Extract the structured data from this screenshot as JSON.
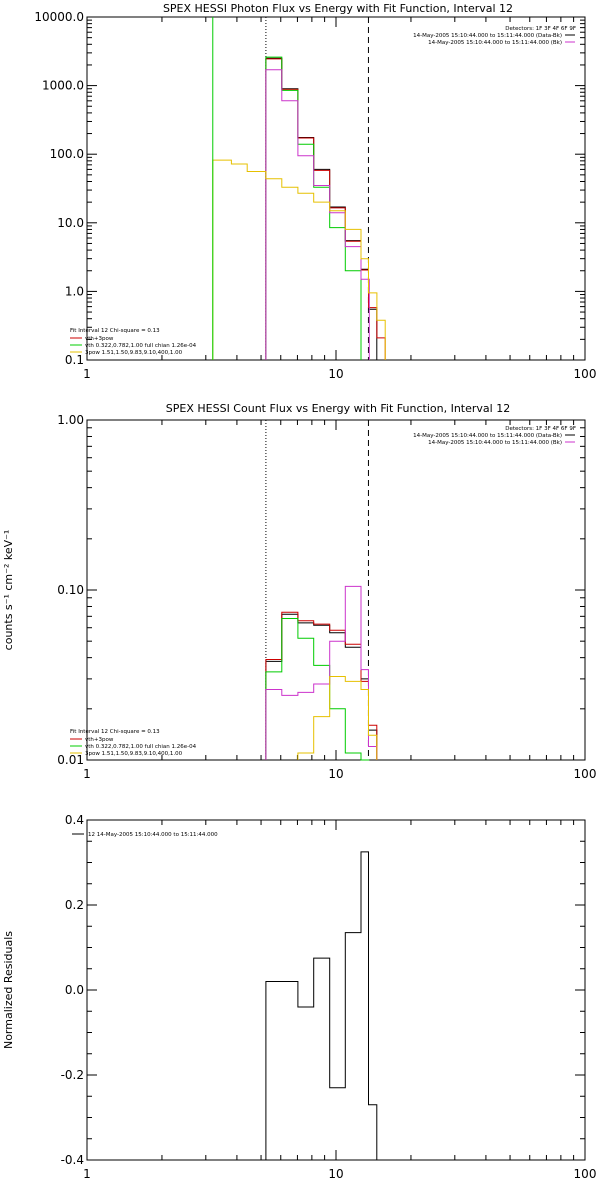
{
  "chart_data": [
    {
      "type": "line",
      "title": "SPEX HESSI Photon Flux vs Energy with Fit Function, Interval 12",
      "ylabel": "",
      "xlabel": "",
      "scale": "log-log",
      "xlim": [
        1,
        100
      ],
      "ylim": [
        0.1,
        10000
      ],
      "x_ticks": [
        "1",
        "10",
        "100"
      ],
      "y_ticks": [
        "0.1",
        "1.0",
        "10.0",
        "100.0",
        "1000.0",
        "10000.0"
      ],
      "legend_top_right": {
        "header": "Detectors: 1F 3F 4F 6F 9F",
        "lines": [
          {
            "text": "14-May-2005 15:10:44.000 to 15:11:44.000 (Data-Bk)",
            "color": "#000000"
          },
          {
            "text": "14-May-2005 15:10:44.000 to 15:11:44.000 (Bk)",
            "color": "#cc33cc"
          }
        ]
      },
      "legend_bottom_left": {
        "header": "Fit Interval 12    Chi-square = 0.13",
        "lines": [
          {
            "text": "vth+3pow",
            "color": "#cc0000"
          },
          {
            "text": "vth 0.322,0.782,1.00  full chian 1.26e-04",
            "color": "#00cc00"
          },
          {
            "text": "3pow 1.51,1.50,9.83,9.10,400,1.00",
            "color": "#e6c000"
          }
        ]
      },
      "vlines": [
        {
          "x": 5.23,
          "style": "dotted"
        },
        {
          "x": 13.5,
          "style": "dashed"
        }
      ],
      "series": [
        {
          "color": "#000000",
          "x": [
            5.23,
            6.06,
            7.03,
            8.14,
            9.43,
            10.9,
            12.6,
            13.5
          ],
          "y": [
            2500,
            900,
            175,
            60,
            17,
            5.5,
            2.1,
            0.55
          ]
        },
        {
          "color": "#cc0000",
          "x": [
            5.23,
            6.06,
            7.03,
            8.14,
            9.43,
            10.9,
            12.6,
            13.5,
            14.6
          ],
          "y": [
            2450,
            880,
            172,
            58,
            16.5,
            5.4,
            2.05,
            0.58,
            0.21
          ]
        },
        {
          "color": "#00cc00",
          "x_start": 5.23,
          "x": [
            6.06,
            7.03,
            8.14,
            9.43,
            10.9,
            12.6
          ],
          "y": [
            2600,
            850,
            140,
            33,
            8.5,
            2.0
          ],
          "drop_at": [
            5.23,
            12.6
          ]
        },
        {
          "color": "#cc33cc",
          "x": [
            5.23,
            6.06,
            7.03,
            8.14,
            9.43,
            10.9,
            12.6
          ],
          "y": [
            1700,
            600,
            95,
            35,
            14,
            4.5,
            1.5
          ]
        },
        {
          "color": "#e6c000",
          "x": [
            3.2,
            3.8,
            4.4,
            5.23,
            6.06,
            7.03,
            8.14,
            9.43,
            10.9,
            12.6,
            13.5,
            14.6
          ],
          "y": [
            82,
            72,
            56,
            44,
            33,
            27,
            20,
            15,
            8,
            3,
            0.95,
            0.38
          ]
        }
      ]
    },
    {
      "type": "line",
      "title": "SPEX HESSI Count Flux vs Energy with Fit Function, Interval 12",
      "ylabel": "counts s⁻¹ cm⁻² keV⁻¹",
      "xlabel": "",
      "scale": "log-log",
      "xlim": [
        1,
        100
      ],
      "ylim": [
        0.01,
        1.0
      ],
      "x_ticks": [
        "1",
        "10",
        "100"
      ],
      "y_ticks": [
        "0.01",
        "0.10",
        "1.00"
      ],
      "legend_top_right": {
        "header": "Detectors: 1F 3F 4F 6F 9F",
        "lines": [
          {
            "text": "14-May-2005 15:10:44.000 to 15:11:44.000 (Data-Bk)",
            "color": "#000000"
          },
          {
            "text": "14-May-2005 15:10:44.000 to 15:11:44.000 (Bk)",
            "color": "#cc33cc"
          }
        ]
      },
      "legend_bottom_left": {
        "header": "Fit Interval 12    Chi-square = 0.13",
        "lines": [
          {
            "text": "vth+3pow",
            "color": "#cc0000"
          },
          {
            "text": "vth 0.322,0.782,1.00  full chian 1.26e-04",
            "color": "#00cc00"
          },
          {
            "text": "3pow 1.51,1.50,9.83,9.10,400,1.00",
            "color": "#e6c000"
          }
        ]
      },
      "vlines": [
        {
          "x": 5.23,
          "style": "dotted"
        },
        {
          "x": 13.5,
          "style": "dashed"
        }
      ],
      "series": [
        {
          "color": "#000000",
          "x": [
            5.23,
            6.06,
            7.03,
            8.14,
            9.43,
            10.9,
            12.6,
            13.5
          ],
          "y": [
            0.038,
            0.072,
            0.064,
            0.062,
            0.056,
            0.046,
            0.03,
            0.015
          ]
        },
        {
          "color": "#cc0000",
          "x": [
            5.23,
            6.06,
            7.03,
            8.14,
            9.43,
            10.9,
            12.6,
            13.5
          ],
          "y": [
            0.039,
            0.074,
            0.066,
            0.063,
            0.058,
            0.048,
            0.029,
            0.016
          ]
        },
        {
          "color": "#00cc00",
          "x": [
            5.23,
            6.06,
            7.03,
            8.14,
            9.43,
            10.9,
            12.6
          ],
          "y": [
            0.033,
            0.068,
            0.052,
            0.036,
            0.02,
            0.011,
            0.01
          ]
        },
        {
          "color": "#cc33cc",
          "x": [
            5.23,
            6.06,
            7.03,
            8.14,
            9.43,
            10.9,
            12.6,
            13.5
          ],
          "y": [
            0.026,
            0.024,
            0.025,
            0.028,
            0.05,
            0.105,
            0.034,
            0.012
          ]
        },
        {
          "color": "#e6c000",
          "x": [
            7.03,
            8.14,
            9.43,
            10.9,
            12.6,
            13.5
          ],
          "y": [
            0.011,
            0.018,
            0.031,
            0.029,
            0.026,
            0.014
          ]
        }
      ]
    },
    {
      "type": "line",
      "title": "",
      "ylabel": "Normalized Residuals",
      "xlabel": "",
      "scale": "log-x",
      "xlim": [
        1,
        100
      ],
      "ylim": [
        -0.4,
        0.4
      ],
      "x_ticks": [
        "1",
        "10",
        "100"
      ],
      "y_ticks": [
        "-0.4",
        "-0.2",
        "0.0",
        "0.2",
        "0.4"
      ],
      "legend_top_left": {
        "lines": [
          {
            "text": "12  14-May-2005 15:10:44.000 to 15:11:44.000",
            "color": "#000000"
          }
        ]
      },
      "series": [
        {
          "color": "#000000",
          "x": [
            5.23,
            6.06,
            7.03,
            8.14,
            9.43,
            10.9,
            12.6,
            13.5
          ],
          "y": [
            0.02,
            0.02,
            -0.04,
            0.075,
            -0.23,
            0.135,
            0.325,
            -0.27
          ]
        }
      ]
    }
  ]
}
